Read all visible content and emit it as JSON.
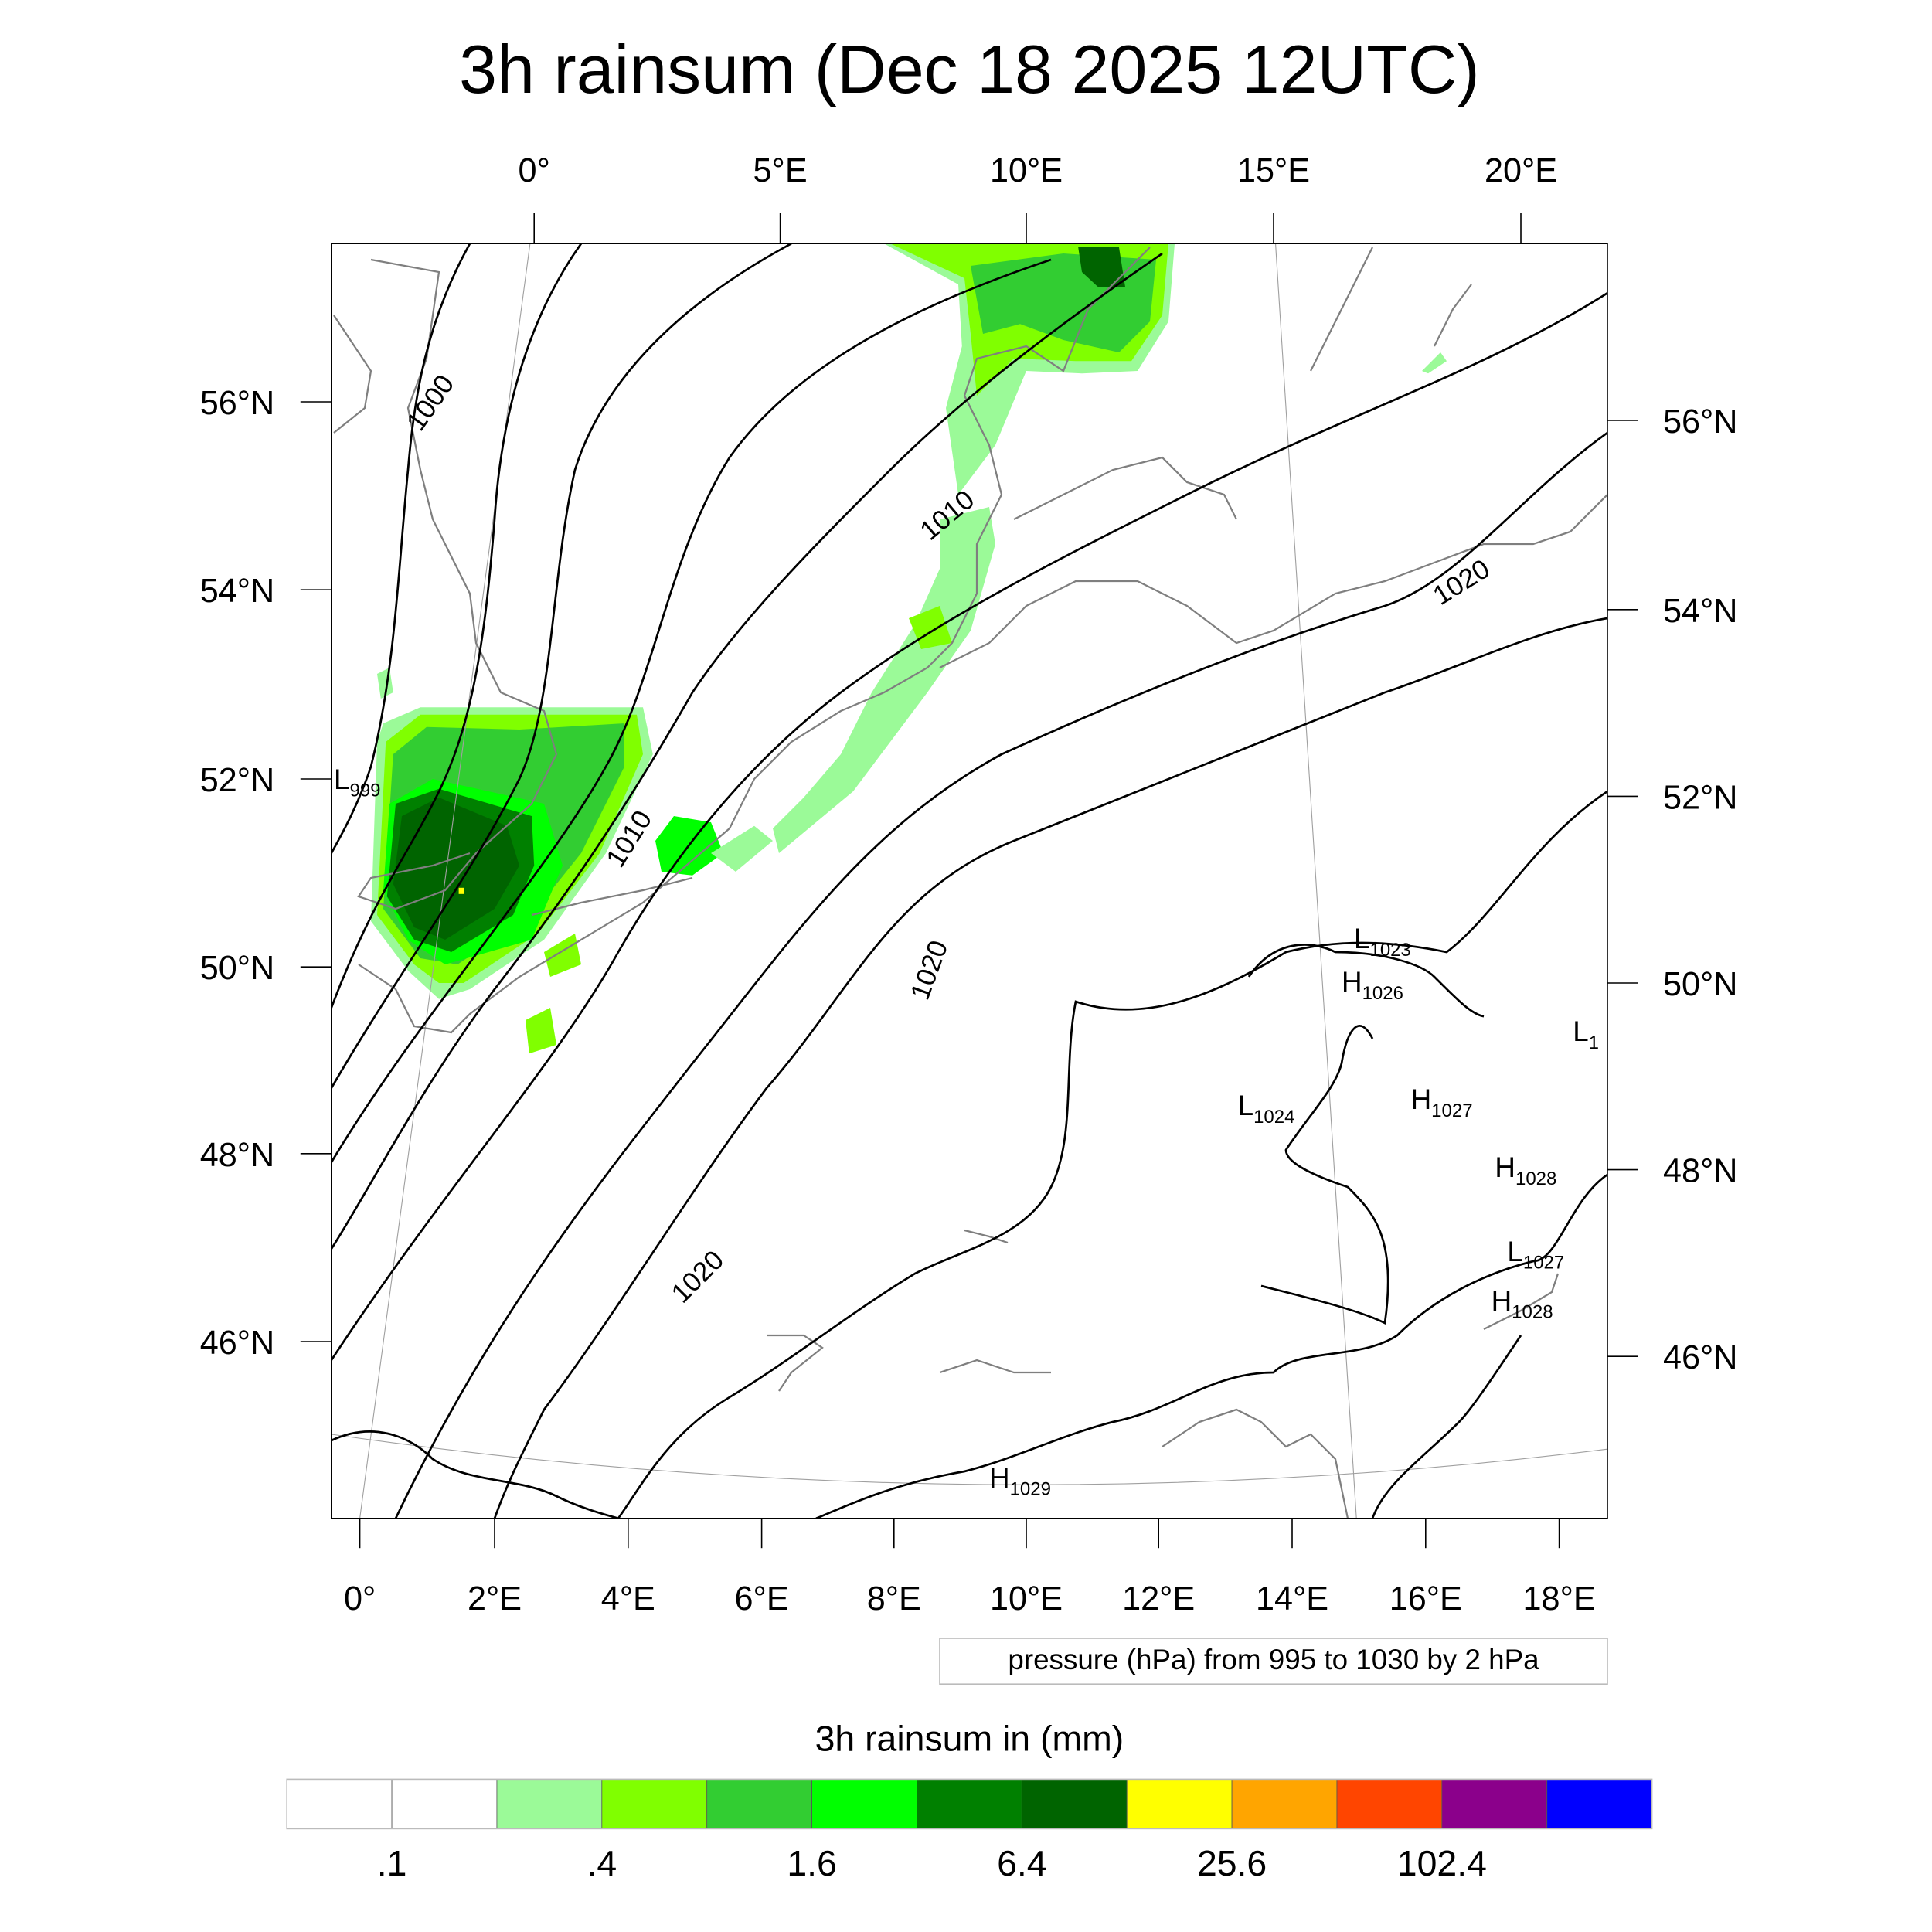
{
  "title": "3h rainsum (Dec 18 2025 12UTC)",
  "axes": {
    "top_lon_labels": [
      "0°",
      "5°E",
      "10°E",
      "15°E",
      "20°E"
    ],
    "bottom_lon_labels": [
      "0°",
      "2°E",
      "4°E",
      "6°E",
      "8°E",
      "10°E",
      "12°E",
      "14°E",
      "16°E",
      "18°E"
    ],
    "left_lat_labels": [
      "56°N",
      "54°N",
      "52°N",
      "50°N",
      "48°N",
      "46°N"
    ],
    "right_lat_labels": [
      "56°N",
      "54°N",
      "52°N",
      "50°N",
      "48°N",
      "46°N"
    ]
  },
  "contour_labels": [
    "1000",
    "1010",
    "1010",
    "1020",
    "1020",
    "1020",
    "1020"
  ],
  "pressure_centers": [
    {
      "letter": "L",
      "value": "999"
    },
    {
      "letter": "L",
      "value": "1023"
    },
    {
      "letter": "H",
      "value": "1026"
    },
    {
      "letter": "L",
      "value": "1024"
    },
    {
      "letter": "H",
      "value": "1027"
    },
    {
      "letter": "H",
      "value": "1028"
    },
    {
      "letter": "L",
      "value": "1027"
    },
    {
      "letter": "H",
      "value": "1028"
    },
    {
      "letter": "H",
      "value": "1029"
    },
    {
      "letter": "L",
      "value": "1"
    }
  ],
  "contour_info": "pressure (hPa) from 995 to 1030 by 2 hPa",
  "colorbar": {
    "title": "3h rainsum in (mm)",
    "colors": [
      "#FFFFFF",
      "#FFFFFF",
      "#9BFA98",
      "#80FF00",
      "#32CD32",
      "#00FF00",
      "#008000",
      "#006400",
      "#FFFF00",
      "#FFA500",
      "#FF4500",
      "#8B008B",
      "#0000FF"
    ],
    "labels": [
      ".1",
      ".4",
      "1.6",
      "6.4",
      "25.6",
      "102.4"
    ]
  }
}
